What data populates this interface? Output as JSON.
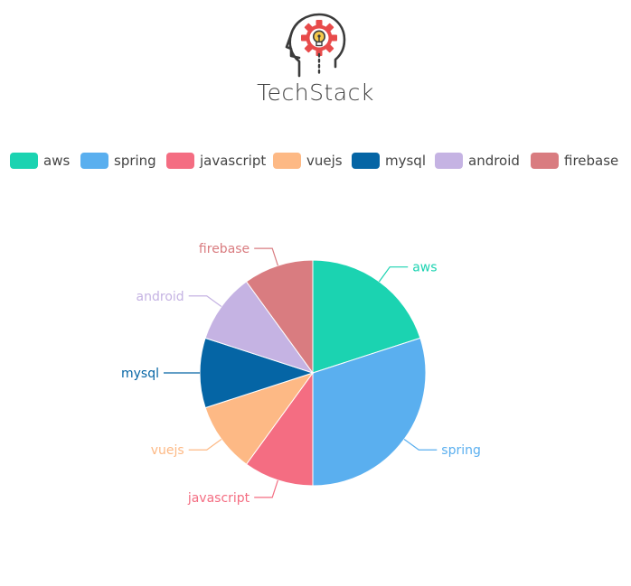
{
  "header": {
    "logo_icon": "head-gear-lightbulb-icon",
    "title": "TechStack"
  },
  "colors": {
    "aws": "#1bd3b1",
    "spring": "#5aafef",
    "javascript": "#f46d82",
    "vuejs": "#fdb985",
    "mysql": "#0565a5",
    "android": "#c5b3e3",
    "firebase": "#d97c80"
  },
  "chart_data": {
    "type": "pie",
    "title": "",
    "legend_position": "top",
    "start": "top, clockwise",
    "slices": [
      {
        "label": "aws",
        "value": 2
      },
      {
        "label": "spring",
        "value": 3
      },
      {
        "label": "javascript",
        "value": 1
      },
      {
        "label": "vuejs",
        "value": 1
      },
      {
        "label": "mysql",
        "value": 1
      },
      {
        "label": "android",
        "value": 1
      },
      {
        "label": "firebase",
        "value": 1
      }
    ]
  }
}
